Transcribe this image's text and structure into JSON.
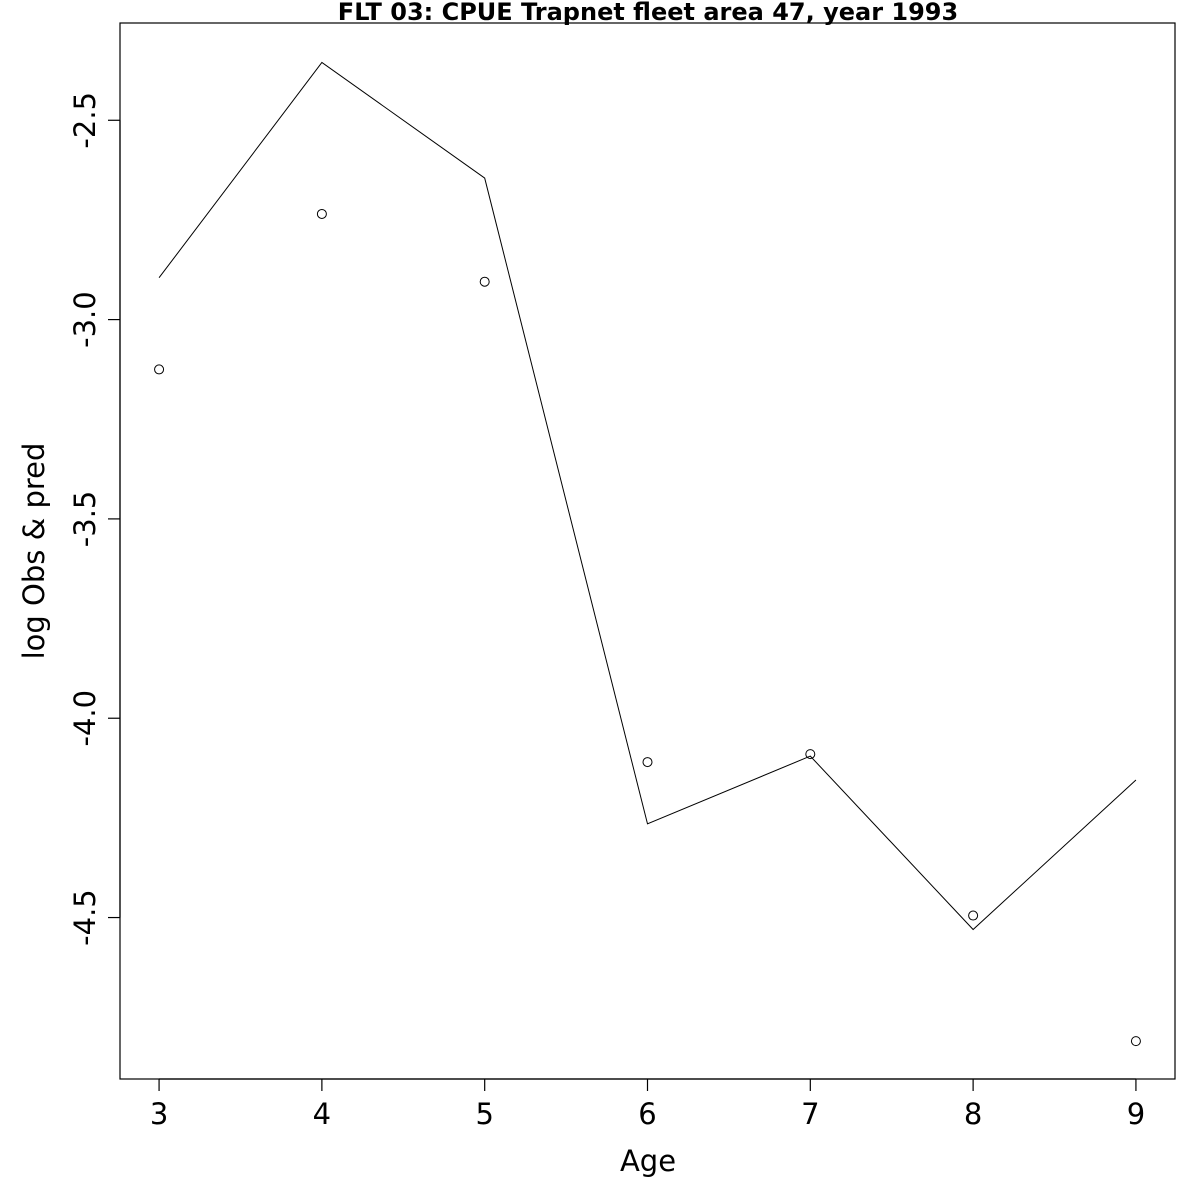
{
  "chart_data": {
    "type": "line",
    "title": "FLT 03: CPUE Trapnet fleet area 47, year 1993",
    "xlabel": "Age",
    "ylabel": "log Obs & pred",
    "x": [
      3,
      4,
      5,
      6,
      7,
      8,
      9
    ],
    "xticks": [
      "3",
      "4",
      "5",
      "6",
      "7",
      "8",
      "9"
    ],
    "yticks": [
      -2.5,
      -3.0,
      -3.5,
      -4.0,
      -4.5
    ],
    "ytick_labels": [
      "-2.5",
      "-3.0",
      "-3.5",
      "-4.0",
      "-4.5"
    ],
    "xlim": [
      2.76,
      9.24
    ],
    "ylim": [
      -4.905,
      -2.256
    ],
    "grid": false,
    "series": [
      {
        "role": "observed",
        "style": "points",
        "values": [
          -3.125,
          -2.735,
          -2.905,
          -4.11,
          -4.09,
          -4.495,
          -4.81
        ]
      },
      {
        "role": "predicted",
        "style": "line",
        "values": [
          -2.895,
          -2.355,
          -2.645,
          -4.265,
          -4.095,
          -4.53,
          -4.155
        ]
      }
    ],
    "colors": {
      "line": "#000000",
      "points": "#000000",
      "frame": "#000000",
      "background": "#ffffff"
    }
  }
}
